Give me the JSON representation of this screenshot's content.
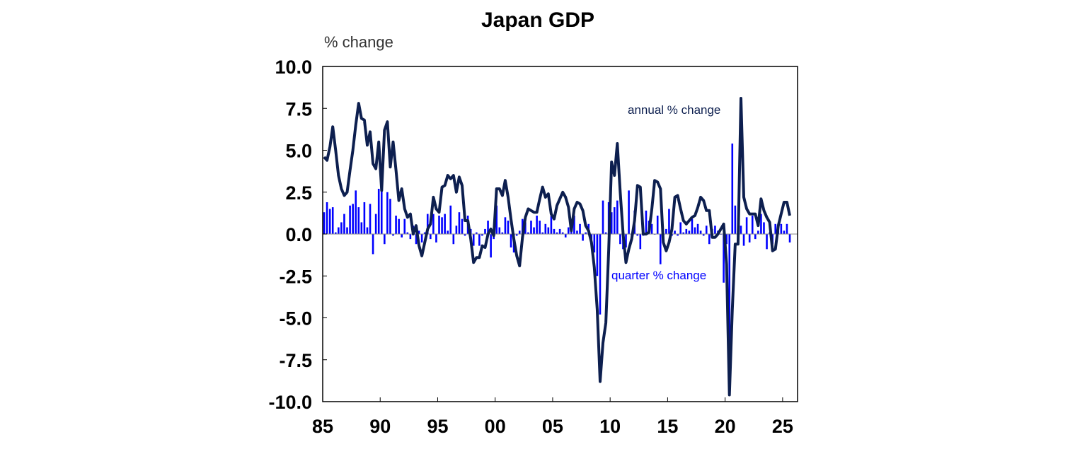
{
  "chart_data": {
    "type": "bar+line",
    "title": "Japan GDP",
    "ylabel": "% change",
    "xlabel": "",
    "ylim": [
      -10,
      10
    ],
    "yticks": [
      "10.0",
      "7.5",
      "5.0",
      "2.5",
      "0.0",
      "-2.5",
      "-5.0",
      "-7.5",
      "-10.0"
    ],
    "ytick_values": [
      10,
      7.5,
      5,
      2.5,
      0,
      -2.5,
      -5,
      -7.5,
      -10
    ],
    "xlim": [
      1985,
      2026.3
    ],
    "xticks": [
      "85",
      "90",
      "95",
      "00",
      "05",
      "10",
      "15",
      "20",
      "25"
    ],
    "xtick_values": [
      1985,
      1990,
      1995,
      2000,
      2005,
      2010,
      2015,
      2020,
      2025
    ],
    "grid": false,
    "x_start": 1985,
    "x_step": 0.25,
    "series": [
      {
        "name": "quarter % change",
        "type": "bar",
        "color": "#0000FF",
        "values": [
          1.3,
          1.9,
          1.5,
          1.6,
          0.1,
          0.4,
          0.7,
          1.2,
          0.4,
          1.7,
          1.8,
          2.6,
          1.6,
          0.7,
          1.9,
          0.4,
          1.8,
          -1.2,
          1.2,
          2.7,
          2.8,
          -0.6,
          2.5,
          2.1,
          -0.1,
          1.1,
          0.9,
          -0.2,
          0.9,
          0.1,
          -0.3,
          0.5,
          -0.6,
          0.2,
          -0.5,
          0.1,
          1.2,
          -0.3,
          1.2,
          -0.5,
          1.1,
          1.0,
          1.2,
          0.2,
          1.7,
          -0.6,
          0.5,
          1.3,
          0.9,
          -0.1,
          1.1,
          0.3,
          -0.7,
          0.1,
          -0.7,
          -0.1,
          0.3,
          0.8,
          -1.4,
          -0.3,
          1.7,
          0.4,
          0.1,
          1.0,
          0.8,
          -0.8,
          -1.1,
          -0.1,
          0.2,
          0.9,
          0.7,
          0.1,
          0.8,
          0.4,
          1.1,
          0.8,
          0.1,
          0.6,
          0.4,
          1.1,
          0.3,
          0.1,
          0.3,
          0.1,
          -0.2,
          0.4,
          0.9,
          1.1,
          0.2,
          0.6,
          -0.4,
          0.1,
          0.6,
          -0.6,
          -1.1,
          -2.5,
          -4.8,
          2.0,
          0.1,
          1.9,
          1.3,
          1.6,
          2.0,
          -0.6,
          -0.9,
          -0.8,
          2.6,
          -0.2,
          1.4,
          -0.1,
          -0.9,
          -0.1,
          1.4,
          0.8,
          0.6,
          0.0,
          1.1,
          -1.8,
          -0.3,
          0.3,
          1.5,
          -0.1,
          0.2,
          -0.1,
          0.7,
          0.1,
          0.3,
          0.2,
          0.9,
          0.4,
          0.6,
          0.2,
          -0.1,
          0.5,
          -0.6,
          0.3,
          0.5,
          0.2,
          0.0,
          -2.9,
          -0.6,
          -8.0,
          5.4,
          1.7,
          -0.5,
          0.5,
          -0.7,
          1.0,
          -0.5,
          1.1,
          -0.3,
          0.2,
          1.2,
          0.7,
          -0.9,
          0.1,
          -0.6,
          0.6,
          0.3,
          0.6,
          0.2,
          0.6,
          -0.5
        ]
      },
      {
        "name": "annual % change",
        "type": "line",
        "color": "#0D1F4F",
        "values": [
          4.6,
          4.4,
          5.2,
          6.4,
          5.0,
          3.5,
          2.7,
          2.3,
          2.5,
          3.8,
          5.0,
          6.5,
          7.8,
          6.9,
          6.8,
          5.3,
          6.1,
          4.2,
          3.9,
          5.5,
          2.6,
          6.2,
          6.7,
          4.0,
          5.5,
          3.8,
          2.0,
          2.7,
          1.5,
          1.0,
          1.2,
          0.0,
          0.5,
          -0.7,
          -1.3,
          -0.5,
          0.3,
          0.6,
          2.2,
          1.5,
          1.3,
          2.8,
          2.9,
          3.5,
          3.3,
          3.5,
          2.5,
          3.4,
          2.9,
          0.8,
          0.8,
          -0.3,
          -1.7,
          -1.4,
          -1.4,
          -0.7,
          -0.8,
          0.0,
          0.3,
          -0.1,
          2.7,
          2.7,
          2.3,
          3.2,
          2.2,
          0.9,
          -0.3,
          -1.3,
          -1.9,
          -0.2,
          1.0,
          1.5,
          1.4,
          1.3,
          1.3,
          2.1,
          2.8,
          2.2,
          2.4,
          1.2,
          0.9,
          1.7,
          2.1,
          2.5,
          2.2,
          1.6,
          0.2,
          1.5,
          1.9,
          1.8,
          1.4,
          0.5,
          0.2,
          -0.5,
          -2.0,
          -4.5,
          -8.8,
          -6.5,
          -5.3,
          -1.0,
          4.3,
          3.5,
          5.4,
          2.5,
          0.0,
          -1.7,
          -0.9,
          -0.3,
          0.8,
          2.9,
          2.8,
          0.0,
          0.0,
          0.1,
          1.5,
          3.2,
          3.1,
          2.7,
          -0.5,
          -1.0,
          -0.5,
          0.3,
          2.2,
          2.3,
          1.5,
          0.8,
          0.6,
          0.8,
          1.0,
          1.1,
          1.6,
          2.2,
          2.0,
          1.4,
          1.4,
          -0.2,
          -0.2,
          0.0,
          0.3,
          0.6,
          -1.8,
          -9.6,
          -4.5,
          -0.6,
          -0.6,
          8.1,
          2.2,
          1.5,
          1.2,
          1.2,
          1.2,
          0.5,
          2.1,
          1.4,
          1.0,
          0.7,
          -1.0,
          -0.9,
          0.5,
          1.2,
          1.9,
          1.9,
          1.1
        ]
      }
    ],
    "annotations": {
      "annual": "annual % change",
      "quarter": "quarter % change"
    }
  }
}
